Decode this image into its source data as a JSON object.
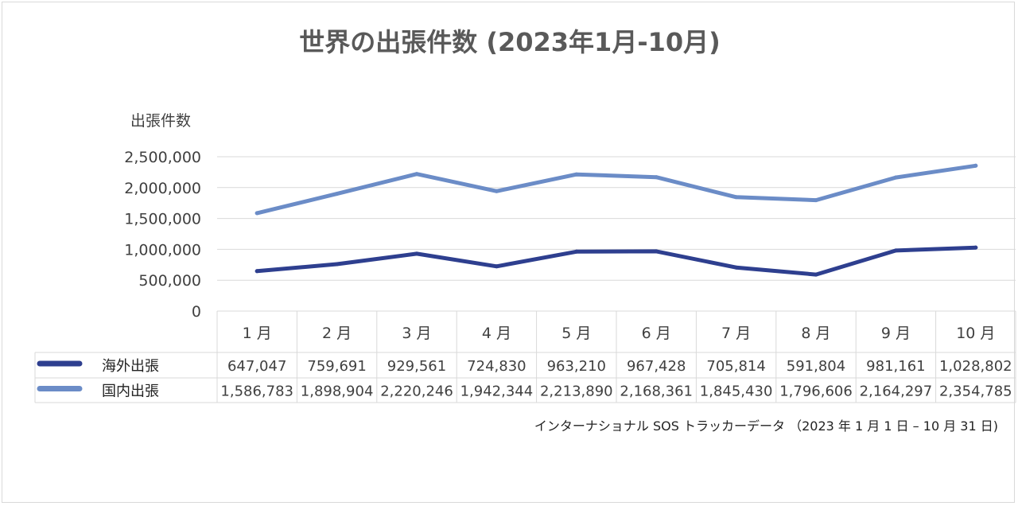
{
  "chart_data": {
    "type": "line",
    "title": "世界の出張件数 (2023年1月-10月)",
    "ylabel": "出張件数",
    "xlabel": "",
    "categories": [
      "1 月",
      "2 月",
      "3 月",
      "4 月",
      "5 月",
      "6 月",
      "7 月",
      "8 月",
      "9 月",
      "10 月"
    ],
    "ylim": [
      0,
      2500000
    ],
    "yticks": [
      "0",
      "500,000",
      "1,000,000",
      "1,500,000",
      "2,000,000",
      "2,500,000"
    ],
    "grid": true,
    "legend": "data-table",
    "series": [
      {
        "name": "海外出張",
        "color": "#2e3f8f",
        "values": [
          647047,
          759691,
          929561,
          724830,
          963210,
          967428,
          705814,
          591804,
          981161,
          1028802
        ],
        "labels": [
          "647,047",
          "759,691",
          "929,561",
          "724,830",
          "963,210",
          "967,428",
          "705,814",
          "591,804",
          "981,161",
          "1,028,802"
        ]
      },
      {
        "name": "国内出張",
        "color": "#6b8cc7",
        "values": [
          1586783,
          1898904,
          2220246,
          1942344,
          2213890,
          2168361,
          1845430,
          1796606,
          2164297,
          2354785
        ],
        "labels": [
          "1,586,783",
          "1,898,904",
          "2,220,246",
          "1,942,344",
          "2,213,890",
          "2,168,361",
          "1,845,430",
          "1,796,606",
          "2,164,297",
          "2,354,785"
        ]
      }
    ],
    "source": "インターナショナル SOS トラッカーデータ （2023 年 1 月 1 日 – 10 月 31 日)"
  }
}
